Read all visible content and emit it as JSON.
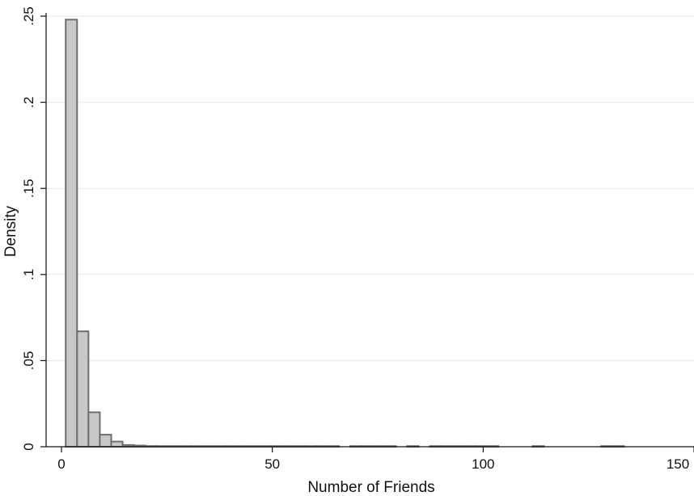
{
  "chart_data": {
    "type": "bar",
    "histogram": true,
    "xlabel": "Number of Friends",
    "ylabel": "Density",
    "xlim": [
      0,
      150
    ],
    "ylim": [
      0,
      0.25
    ],
    "grid": true,
    "x_ticks": [
      {
        "value": 0,
        "label": "0"
      },
      {
        "value": 50,
        "label": "50"
      },
      {
        "value": 100,
        "label": "100"
      },
      {
        "value": 150,
        "label": "150"
      }
    ],
    "y_ticks": [
      {
        "value": 0,
        "label": "0"
      },
      {
        "value": 0.05,
        "label": ".05"
      },
      {
        "value": 0.1,
        "label": ".1"
      },
      {
        "value": 0.15,
        "label": ".15"
      },
      {
        "value": 0.2,
        "label": ".2"
      },
      {
        "value": 0.25,
        "label": ".25"
      }
    ],
    "bin_width": 2.7,
    "bins": [
      {
        "start": 1.0,
        "density": 0.248
      },
      {
        "start": 3.7,
        "density": 0.067
      },
      {
        "start": 6.4,
        "density": 0.02
      },
      {
        "start": 9.1,
        "density": 0.007
      },
      {
        "start": 11.8,
        "density": 0.003
      },
      {
        "start": 14.5,
        "density": 0.001
      },
      {
        "start": 17.2,
        "density": 0.0007
      },
      {
        "start": 19.9,
        "density": 0.0004
      },
      {
        "start": 22.6,
        "density": 0.0003
      },
      {
        "start": 25.3,
        "density": 0.0002
      },
      {
        "start": 28.0,
        "density": 0.0002
      },
      {
        "start": 30.7,
        "density": 0.0002
      },
      {
        "start": 33.4,
        "density": 0.0002
      },
      {
        "start": 36.1,
        "density": 0.0002
      },
      {
        "start": 38.8,
        "density": 0.0002
      },
      {
        "start": 41.5,
        "density": 0.0002
      },
      {
        "start": 44.2,
        "density": 0.0002
      },
      {
        "start": 46.9,
        "density": 0.0002
      },
      {
        "start": 49.6,
        "density": 0.0002
      },
      {
        "start": 52.3,
        "density": 0.0002
      },
      {
        "start": 55.0,
        "density": 0.0002
      },
      {
        "start": 57.7,
        "density": 0.0002
      },
      {
        "start": 60.4,
        "density": 0.0002
      },
      {
        "start": 63.1,
        "density": 0.0002
      },
      {
        "start": 68.5,
        "density": 0.0002
      },
      {
        "start": 71.2,
        "density": 0.0002
      },
      {
        "start": 73.9,
        "density": 0.0002
      },
      {
        "start": 76.6,
        "density": 0.0002
      },
      {
        "start": 82.0,
        "density": 0.0002
      },
      {
        "start": 87.4,
        "density": 0.0002
      },
      {
        "start": 90.1,
        "density": 0.0002
      },
      {
        "start": 92.8,
        "density": 0.0002
      },
      {
        "start": 95.5,
        "density": 0.0002
      },
      {
        "start": 98.2,
        "density": 0.0002
      },
      {
        "start": 100.9,
        "density": 0.0002
      },
      {
        "start": 111.7,
        "density": 0.0002
      },
      {
        "start": 128.0,
        "density": 0.0002
      },
      {
        "start": 130.7,
        "density": 0.0002
      }
    ]
  }
}
